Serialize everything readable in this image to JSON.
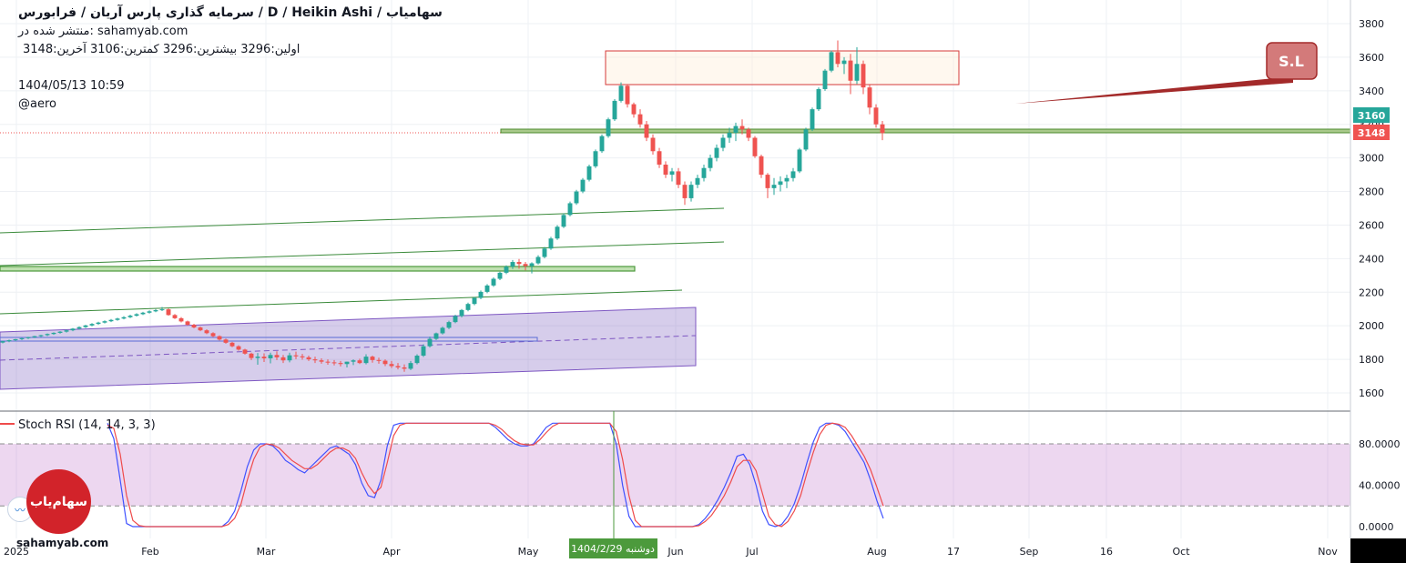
{
  "header": {
    "title": "سرمایه گذاری پارس آریان /  فرابورس  /  D  /  Heikin Ashi / سهامیاب",
    "published": "منتشر شده در: sahamyab.com",
    "ohlc": "اولین:3296  بیشترین:3296  کمترین:3106  آخرین:3148",
    "datetime": "1404/05/13 10:59",
    "author": "@aero"
  },
  "watermark": "sahamyab.com",
  "logo_text": "سهام‌یاب",
  "price_badges": {
    "current": "3160",
    "last": "3148"
  },
  "annotation_label": "S.L",
  "crosshair_date": "دوشنبه 1404/2/29",
  "colors": {
    "up": "#26a69a",
    "down": "#ef5350",
    "stoch_k": "#3f51ff",
    "stoch_d": "#ef4b4b"
  },
  "chart_data": [
    {
      "type": "candlestick",
      "style": "Heikin Ashi",
      "ylim": [
        1500,
        3900
      ],
      "y_ticks": [
        1600,
        1800,
        2000,
        2200,
        2400,
        2600,
        2800,
        3000,
        3200,
        3400,
        3600,
        3800
      ],
      "x_ticks": [
        "2025",
        "Feb",
        "Mar",
        "Apr",
        "May",
        "Jun",
        "Jul",
        "Aug",
        "17",
        "Sep",
        "16",
        "Oct",
        "Nov"
      ],
      "grid": true,
      "candles_ohlc": [
        [
          1900,
          1910,
          1895,
          1908
        ],
        [
          1908,
          1918,
          1902,
          1914
        ],
        [
          1914,
          1922,
          1909,
          1920
        ],
        [
          1920,
          1928,
          1915,
          1926
        ],
        [
          1926,
          1934,
          1921,
          1932
        ],
        [
          1932,
          1940,
          1927,
          1938
        ],
        [
          1938,
          1946,
          1933,
          1944
        ],
        [
          1944,
          1954,
          1939,
          1951
        ],
        [
          1951,
          1961,
          1946,
          1958
        ],
        [
          1958,
          1968,
          1953,
          1965
        ],
        [
          1965,
          1977,
          1960,
          1973
        ],
        [
          1973,
          1987,
          1968,
          1983
        ],
        [
          1983,
          1996,
          1978,
          1992
        ],
        [
          1992,
          2006,
          1987,
          2002
        ],
        [
          2002,
          2016,
          1997,
          2011
        ],
        [
          2011,
          2024,
          2006,
          2019
        ],
        [
          2019,
          2032,
          2014,
          2027
        ],
        [
          2027,
          2040,
          2022,
          2035
        ],
        [
          2035,
          2048,
          2030,
          2043
        ],
        [
          2043,
          2057,
          2038,
          2051
        ],
        [
          2051,
          2066,
          2046,
          2060
        ],
        [
          2060,
          2075,
          2055,
          2069
        ],
        [
          2069,
          2083,
          2064,
          2078
        ],
        [
          2078,
          2092,
          2073,
          2086
        ],
        [
          2086,
          2100,
          2081,
          2093
        ],
        [
          2093,
          2112,
          2088,
          2098
        ],
        [
          2098,
          2103,
          2060,
          2064
        ],
        [
          2064,
          2070,
          2040,
          2045
        ],
        [
          2045,
          2052,
          2020,
          2026
        ],
        [
          2026,
          2031,
          2001,
          2006
        ],
        [
          2006,
          2012,
          1985,
          1990
        ],
        [
          1990,
          1995,
          1968,
          1973
        ],
        [
          1973,
          1979,
          1950,
          1956
        ],
        [
          1956,
          1962,
          1932,
          1938
        ],
        [
          1938,
          1943,
          1912,
          1918
        ],
        [
          1918,
          1924,
          1893,
          1899
        ],
        [
          1899,
          1904,
          1872,
          1878
        ],
        [
          1878,
          1884,
          1852,
          1858
        ],
        [
          1858,
          1863,
          1828,
          1834
        ],
        [
          1834,
          1840,
          1796,
          1808
        ],
        [
          1808,
          1838,
          1768,
          1816
        ],
        [
          1816,
          1836,
          1784,
          1806
        ],
        [
          1806,
          1840,
          1776,
          1826
        ],
        [
          1826,
          1848,
          1796,
          1812
        ],
        [
          1812,
          1826,
          1778,
          1794
        ],
        [
          1794,
          1840,
          1782,
          1824
        ],
        [
          1824,
          1846,
          1801,
          1818
        ],
        [
          1818,
          1832,
          1798,
          1812
        ],
        [
          1812,
          1822,
          1790,
          1800
        ],
        [
          1800,
          1816,
          1778,
          1794
        ],
        [
          1794,
          1806,
          1774,
          1786
        ],
        [
          1786,
          1800,
          1768,
          1782
        ],
        [
          1782,
          1796,
          1764,
          1778
        ],
        [
          1778,
          1790,
          1758,
          1772
        ],
        [
          1772,
          1786,
          1752,
          1786
        ],
        [
          1786,
          1800,
          1766,
          1794
        ],
        [
          1794,
          1804,
          1772,
          1778
        ],
        [
          1778,
          1830,
          1770,
          1816
        ],
        [
          1816,
          1822,
          1780,
          1796
        ],
        [
          1796,
          1810,
          1774,
          1792
        ],
        [
          1792,
          1800,
          1760,
          1772
        ],
        [
          1772,
          1790,
          1748,
          1760
        ],
        [
          1760,
          1778,
          1740,
          1752
        ],
        [
          1752,
          1770,
          1726,
          1744
        ],
        [
          1744,
          1790,
          1736,
          1778
        ],
        [
          1778,
          1830,
          1770,
          1822
        ],
        [
          1822,
          1890,
          1814,
          1878
        ],
        [
          1878,
          1935,
          1870,
          1922
        ],
        [
          1922,
          1960,
          1915,
          1955
        ],
        [
          1955,
          1995,
          1948,
          1988
        ],
        [
          1988,
          2030,
          1980,
          2022
        ],
        [
          2022,
          2065,
          2015,
          2058
        ],
        [
          2058,
          2100,
          2050,
          2094
        ],
        [
          2094,
          2138,
          2086,
          2130
        ],
        [
          2130,
          2172,
          2122,
          2166
        ],
        [
          2166,
          2210,
          2158,
          2202
        ],
        [
          2202,
          2248,
          2194,
          2240
        ],
        [
          2240,
          2288,
          2232,
          2280
        ],
        [
          2280,
          2322,
          2272,
          2316
        ],
        [
          2316,
          2360,
          2308,
          2352
        ],
        [
          2352,
          2392,
          2338,
          2380
        ],
        [
          2380,
          2398,
          2340,
          2368
        ],
        [
          2368,
          2380,
          2330,
          2356
        ],
        [
          2356,
          2378,
          2312,
          2372
        ],
        [
          2372,
          2420,
          2365,
          2410
        ],
        [
          2410,
          2470,
          2402,
          2460
        ],
        [
          2460,
          2530,
          2452,
          2520
        ],
        [
          2520,
          2600,
          2512,
          2590
        ],
        [
          2590,
          2670,
          2582,
          2660
        ],
        [
          2660,
          2740,
          2652,
          2730
        ],
        [
          2730,
          2810,
          2720,
          2800
        ],
        [
          2800,
          2880,
          2790,
          2870
        ],
        [
          2870,
          2960,
          2860,
          2950
        ],
        [
          2950,
          3050,
          2940,
          3040
        ],
        [
          3040,
          3140,
          3030,
          3130
        ],
        [
          3130,
          3240,
          3120,
          3230
        ],
        [
          3230,
          3350,
          3220,
          3340
        ],
        [
          3340,
          3450,
          3330,
          3430
        ],
        [
          3430,
          3440,
          3300,
          3320
        ],
        [
          3320,
          3330,
          3240,
          3260
        ],
        [
          3260,
          3290,
          3180,
          3200
        ],
        [
          3200,
          3220,
          3100,
          3120
        ],
        [
          3120,
          3140,
          3020,
          3040
        ],
        [
          3040,
          3060,
          2940,
          2960
        ],
        [
          2960,
          2980,
          2880,
          2900
        ],
        [
          2900,
          2940,
          2860,
          2920
        ],
        [
          2920,
          2940,
          2820,
          2840
        ],
        [
          2840,
          2860,
          2720,
          2760
        ],
        [
          2760,
          2860,
          2740,
          2840
        ],
        [
          2840,
          2900,
          2820,
          2880
        ],
        [
          2880,
          2960,
          2860,
          2940
        ],
        [
          2940,
          3020,
          2920,
          3000
        ],
        [
          3000,
          3080,
          2980,
          3060
        ],
        [
          3060,
          3140,
          3040,
          3120
        ],
        [
          3120,
          3180,
          3090,
          3150
        ],
        [
          3150,
          3210,
          3100,
          3190
        ],
        [
          3190,
          3230,
          3140,
          3170
        ],
        [
          3170,
          3180,
          3100,
          3120
        ],
        [
          3120,
          3130,
          3000,
          3010
        ],
        [
          3010,
          3020,
          2880,
          2900
        ],
        [
          2900,
          2910,
          2760,
          2820
        ],
        [
          2820,
          2880,
          2780,
          2840
        ],
        [
          2840,
          2890,
          2800,
          2860
        ],
        [
          2860,
          2900,
          2820,
          2880
        ],
        [
          2880,
          2940,
          2860,
          2920
        ],
        [
          2920,
          3060,
          2910,
          3050
        ],
        [
          3050,
          3180,
          3040,
          3170
        ],
        [
          3170,
          3300,
          3160,
          3290
        ],
        [
          3290,
          3420,
          3280,
          3410
        ],
        [
          3410,
          3530,
          3400,
          3520
        ],
        [
          3520,
          3640,
          3510,
          3630
        ],
        [
          3630,
          3700,
          3540,
          3560
        ],
        [
          3560,
          3600,
          3500,
          3580
        ],
        [
          3580,
          3620,
          3380,
          3460
        ],
        [
          3460,
          3660,
          3440,
          3560
        ],
        [
          3560,
          3580,
          3380,
          3420
        ],
        [
          3420,
          3440,
          3260,
          3300
        ],
        [
          3300,
          3320,
          3180,
          3200
        ],
        [
          3200,
          3220,
          3106,
          3148
        ]
      ]
    },
    {
      "type": "line",
      "title": "Stoch RSI (14, 14, 3, 3)",
      "ylim": [
        -5,
        110
      ],
      "y_ticks": [
        "0.0000",
        "40.0000",
        "80.0000"
      ],
      "band": [
        20,
        80
      ],
      "series": [
        {
          "values": [
            100,
            85,
            45,
            3,
            0,
            0,
            0,
            0,
            0,
            0,
            0,
            0,
            0,
            0,
            0,
            0,
            0,
            0,
            0,
            5,
            15,
            35,
            58,
            74,
            80,
            80,
            78,
            72,
            64,
            60,
            55,
            52,
            58,
            64,
            70,
            76,
            78,
            74,
            70,
            60,
            42,
            30,
            28,
            45,
            78,
            98,
            100,
            100,
            100,
            100,
            100,
            100,
            100,
            100,
            100,
            100,
            100,
            100,
            100,
            100,
            100,
            96,
            90,
            84,
            80,
            78,
            78,
            80,
            88,
            96,
            100,
            100,
            100,
            100,
            100,
            100,
            100,
            100,
            100,
            100,
            80,
            40,
            10,
            0,
            0,
            0,
            0,
            0,
            0,
            0,
            0,
            0,
            0,
            2,
            8,
            16,
            26,
            38,
            52,
            68,
            70,
            60,
            40,
            15,
            2,
            0,
            2,
            10,
            22,
            40,
            62,
            82,
            96,
            100,
            100,
            98,
            92,
            82,
            72,
            62,
            45,
            25,
            8
          ]
        },
        {
          "values": [
            98,
            95,
            70,
            30,
            6,
            1,
            0,
            0,
            0,
            0,
            0,
            0,
            0,
            0,
            0,
            0,
            0,
            0,
            0,
            2,
            8,
            22,
            45,
            65,
            77,
            80,
            79,
            76,
            70,
            64,
            60,
            56,
            56,
            60,
            66,
            72,
            76,
            76,
            73,
            66,
            52,
            40,
            32,
            38,
            62,
            88,
            98,
            100,
            100,
            100,
            100,
            100,
            100,
            100,
            100,
            100,
            100,
            100,
            100,
            100,
            100,
            98,
            94,
            88,
            83,
            80,
            79,
            79,
            84,
            91,
            97,
            100,
            100,
            100,
            100,
            100,
            100,
            100,
            100,
            100,
            92,
            65,
            30,
            6,
            0,
            0,
            0,
            0,
            0,
            0,
            0,
            0,
            0,
            1,
            5,
            11,
            20,
            30,
            43,
            58,
            64,
            64,
            54,
            32,
            10,
            2,
            0,
            5,
            15,
            30,
            52,
            72,
            89,
            98,
            100,
            99,
            96,
            88,
            78,
            68,
            55,
            38,
            20
          ]
        }
      ]
    }
  ]
}
